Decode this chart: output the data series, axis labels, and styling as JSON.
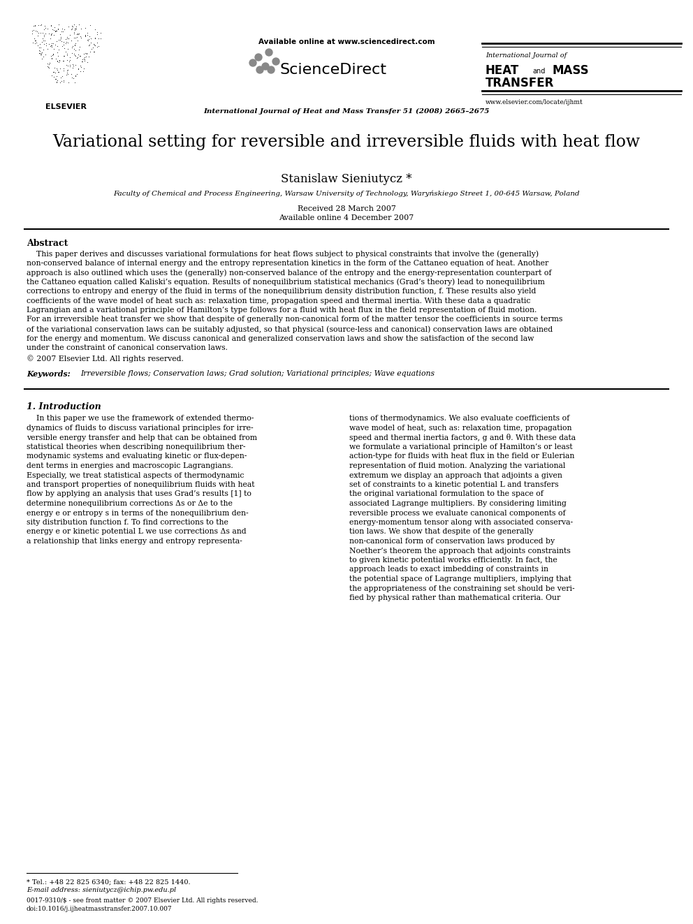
{
  "background_color": "#ffffff",
  "page_width": 9.92,
  "page_height": 13.23,
  "header": {
    "available_online": "Available online at www.sciencedirect.com",
    "journal_line": "International Journal of Heat and Mass Transfer 51 (2008) 2665–2675",
    "website": "www.elsevier.com/locate/ijhmt",
    "journal_name_line1": "International Journal of",
    "journal_name_line2": "HEAT and MASS",
    "journal_name_line3": "TRANSFER"
  },
  "title": "Variational setting for reversible and irreversible fluids with heat flow",
  "author": "Stanislaw Sieniutycz *",
  "affiliation": "Faculty of Chemical and Process Engineering, Warsaw University of Technology, Waryńskiego Street 1, 00-645 Warsaw, Poland",
  "received": "Received 28 March 2007",
  "available": "Available online 4 December 2007",
  "abstract_title": "Abstract",
  "copyright": "© 2007 Elsevier Ltd. All rights reserved.",
  "keywords_label": "Keywords:",
  "keywords": "Irreversible flows; Conservation laws; Grad solution; Variational principles; Wave equations",
  "section1_title": "1. Introduction",
  "footnote": "* Tel.: +48 22 825 6340; fax: +48 22 825 1440.",
  "email": "E-mail address: sieniutycz@ichip.pw.edu.pl",
  "doi_line1": "0017-9310/$ - see front matter © 2007 Elsevier Ltd. All rights reserved.",
  "doi_line2": "doi:10.1016/j.ijheatmasstransfer.2007.10.007"
}
